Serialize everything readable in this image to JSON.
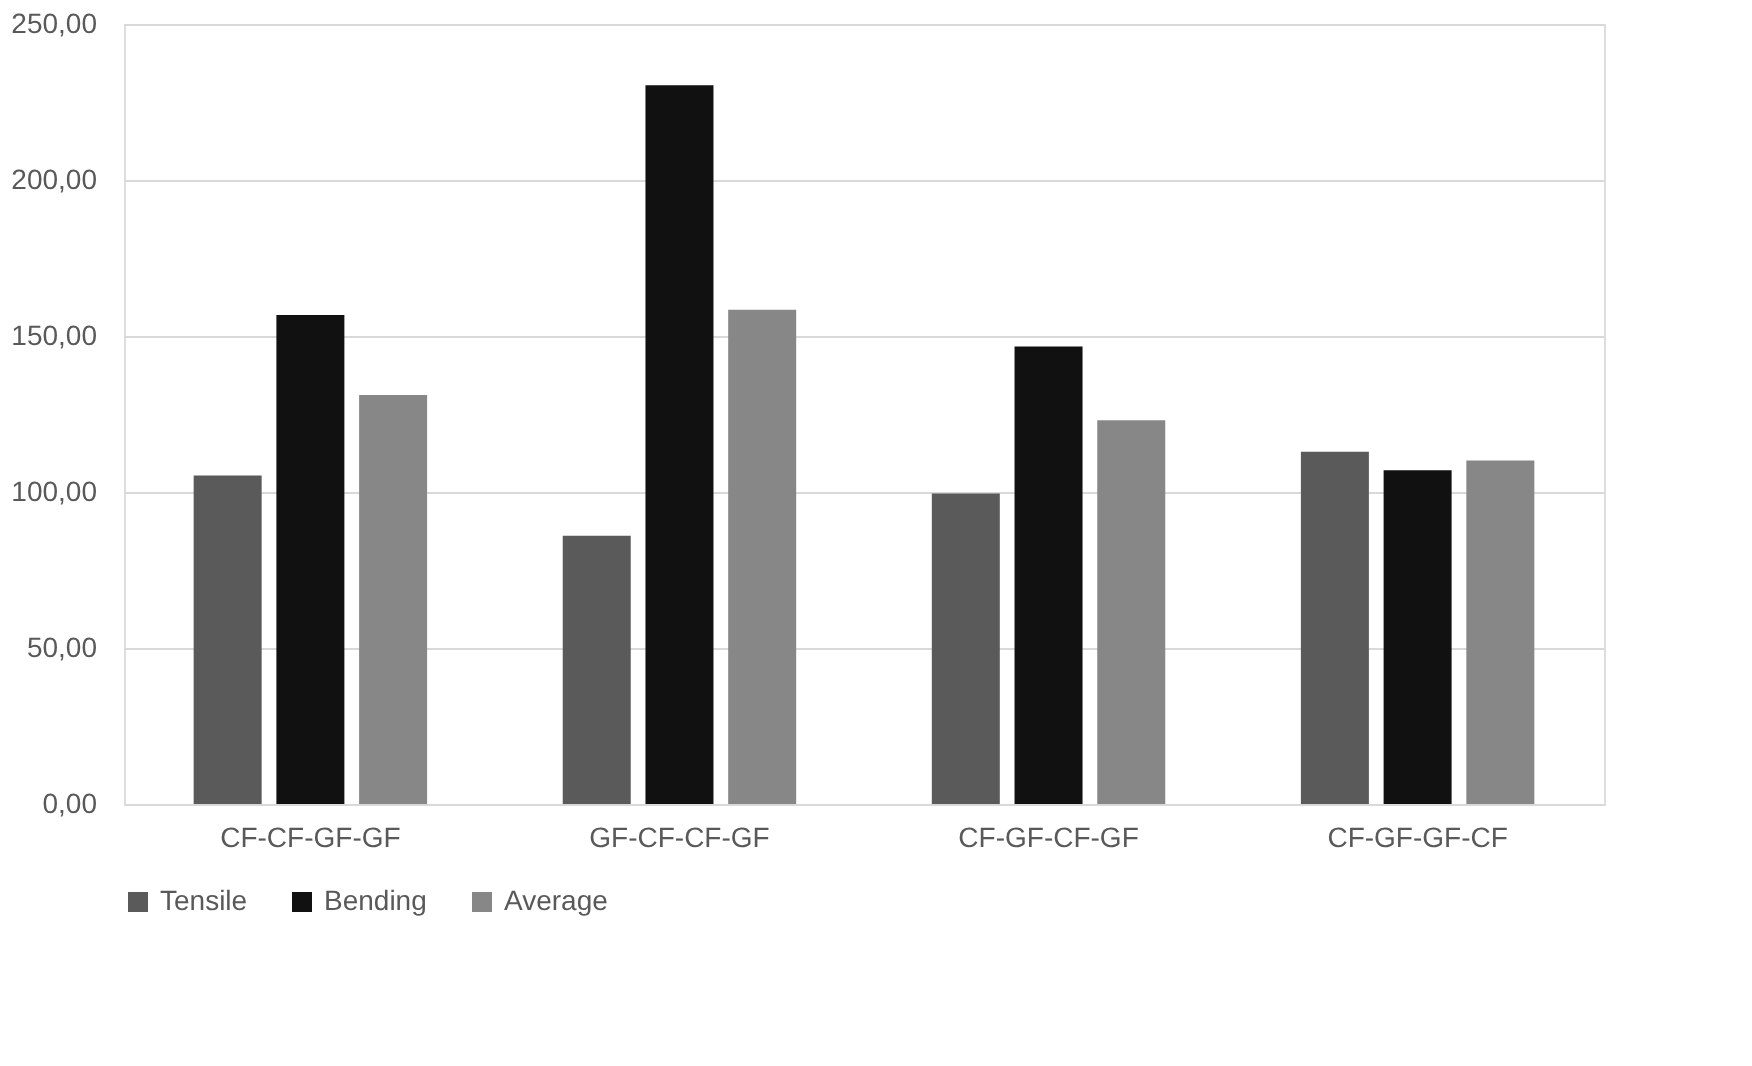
{
  "chart_data": {
    "type": "bar",
    "categories": [
      "CF-CF-GF-GF",
      "GF-CF-CF-GF",
      "CF-GF-CF-GF",
      "CF-GF-GF-CF"
    ],
    "series": [
      {
        "name": "Tensile",
        "color": "#5a5a5a",
        "values": [
          105.3,
          86.0,
          99.5,
          112.9
        ]
      },
      {
        "name": "Bending",
        "color": "#111111",
        "values": [
          156.7,
          230.4,
          146.6,
          107.0
        ]
      },
      {
        "name": "Average",
        "color": "#878787",
        "values": [
          131.1,
          158.4,
          123.0,
          110.1
        ]
      }
    ],
    "ylim": [
      0,
      250
    ],
    "yticks": [
      {
        "value": 0,
        "label": "0,00"
      },
      {
        "value": 50,
        "label": "50,00"
      },
      {
        "value": 100,
        "label": "100,00"
      },
      {
        "value": 150,
        "label": "150,00"
      },
      {
        "value": 200,
        "label": "200,00"
      },
      {
        "value": 250,
        "label": "250,00"
      }
    ],
    "grid": "y",
    "legend": "bottom"
  }
}
